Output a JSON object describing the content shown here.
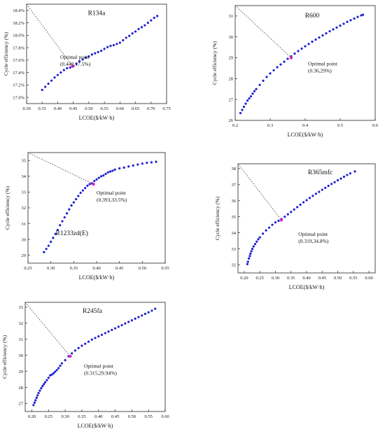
{
  "chart_data": [
    {
      "type": "scatter",
      "title": "R134a",
      "xlabel": "LCOE($/kW·h)",
      "ylabel": "Cycle efficiency (%)",
      "xlim": [
        0.3,
        0.75
      ],
      "ylim": [
        16.9,
        18.5
      ],
      "xticks": [
        0.3,
        0.35,
        0.4,
        0.45,
        0.5,
        0.55,
        0.6,
        0.65,
        0.7,
        0.75
      ],
      "xtick_labels": [
        "0.30",
        "0.35",
        "0.40",
        "0.45",
        "0.50",
        "0.55",
        "0.60",
        "0.65",
        "0.70",
        "0.75"
      ],
      "yticks": [
        17.0,
        17.2,
        17.4,
        17.6,
        17.8,
        18.0,
        18.2,
        18.4
      ],
      "ytick_labels": [
        "17.0%",
        "17.2%",
        "17.4%",
        "17.6%",
        "17.8%",
        "18.0%",
        "18.2%",
        "18.4%"
      ],
      "x": [
        0.35,
        0.36,
        0.37,
        0.38,
        0.39,
        0.4,
        0.41,
        0.42,
        0.43,
        0.44,
        0.45,
        0.46,
        0.47,
        0.48,
        0.49,
        0.5,
        0.51,
        0.52,
        0.53,
        0.54,
        0.55,
        0.56,
        0.57,
        0.58,
        0.59,
        0.6,
        0.61,
        0.62,
        0.63,
        0.64,
        0.65,
        0.66,
        0.67,
        0.68,
        0.69,
        0.7,
        0.71,
        0.72
      ],
      "y": [
        17.12,
        17.17,
        17.22,
        17.27,
        17.32,
        17.36,
        17.4,
        17.44,
        17.47,
        17.48,
        17.5,
        17.54,
        17.58,
        17.61,
        17.64,
        17.66,
        17.69,
        17.71,
        17.73,
        17.75,
        17.78,
        17.81,
        17.83,
        17.84,
        17.86,
        17.88,
        17.92,
        17.96,
        17.99,
        18.03,
        18.06,
        18.1,
        18.13,
        18.16,
        18.2,
        18.24,
        18.28,
        18.31
      ],
      "optimal": {
        "x": 0.448,
        "y": 17.5,
        "label": "Optimal point",
        "value_label": "(0.448,17.5%)"
      },
      "grid": false
    },
    {
      "type": "scatter",
      "title": "R600",
      "xlabel": "LCOE($/kW·h)",
      "ylabel": "Cycle efficiency (%)",
      "xlim": [
        0.2,
        0.6
      ],
      "ylim": [
        26,
        31.5
      ],
      "xticks": [
        0.2,
        0.3,
        0.4,
        0.5,
        0.6
      ],
      "xtick_labels": [
        "0.2",
        "0.3",
        "0.4",
        "0.5",
        "0.6"
      ],
      "yticks": [
        26,
        27,
        28,
        29,
        30,
        31
      ],
      "ytick_labels": [
        "26",
        "27",
        "28",
        "29",
        "30",
        "31"
      ],
      "x": [
        0.215,
        0.22,
        0.225,
        0.23,
        0.235,
        0.24,
        0.245,
        0.25,
        0.255,
        0.26,
        0.27,
        0.28,
        0.29,
        0.3,
        0.31,
        0.32,
        0.33,
        0.34,
        0.35,
        0.36,
        0.37,
        0.38,
        0.39,
        0.4,
        0.41,
        0.42,
        0.43,
        0.44,
        0.45,
        0.46,
        0.47,
        0.48,
        0.49,
        0.5,
        0.51,
        0.52,
        0.53,
        0.54,
        0.55,
        0.56,
        0.565
      ],
      "y": [
        26.35,
        26.5,
        26.65,
        26.8,
        26.95,
        27.05,
        27.15,
        27.28,
        27.4,
        27.5,
        27.7,
        27.9,
        28.08,
        28.25,
        28.4,
        28.55,
        28.68,
        28.81,
        28.95,
        29.07,
        29.2,
        29.32,
        29.44,
        29.55,
        29.66,
        29.77,
        29.87,
        29.97,
        30.07,
        30.17,
        30.27,
        30.36,
        30.45,
        30.54,
        30.63,
        30.72,
        30.8,
        30.88,
        30.96,
        31.03,
        31.06
      ],
      "optimal": {
        "x": 0.36,
        "y": 29.0,
        "label": "Optimal point",
        "value_label": "(0.36,29%)"
      },
      "grid": false
    },
    {
      "type": "scatter",
      "title": "R1233zd(E)",
      "xlabel": "LCOE($/kW·h)",
      "ylabel": "Cycle efficiency (%)",
      "xlim": [
        0.25,
        0.55
      ],
      "ylim": [
        28.5,
        35.5
      ],
      "xticks": [
        0.25,
        0.3,
        0.35,
        0.4,
        0.45,
        0.5,
        0.55
      ],
      "xtick_labels": [
        "0.25",
        "0.30",
        "0.35",
        "0.40",
        "0.45",
        "0.50",
        "0.55"
      ],
      "yticks": [
        29,
        30,
        31,
        32,
        33,
        34,
        35
      ],
      "ytick_labels": [
        "29",
        "30",
        "31",
        "32",
        "33",
        "34",
        "35"
      ],
      "x": [
        0.285,
        0.29,
        0.295,
        0.3,
        0.305,
        0.31,
        0.315,
        0.32,
        0.325,
        0.33,
        0.335,
        0.34,
        0.345,
        0.35,
        0.355,
        0.36,
        0.365,
        0.37,
        0.375,
        0.38,
        0.385,
        0.39,
        0.395,
        0.4,
        0.405,
        0.41,
        0.415,
        0.42,
        0.425,
        0.43,
        0.435,
        0.44,
        0.45,
        0.46,
        0.47,
        0.48,
        0.49,
        0.5,
        0.51,
        0.52,
        0.53
      ],
      "y": [
        29.2,
        29.4,
        29.6,
        29.85,
        30.1,
        30.35,
        30.6,
        30.9,
        31.15,
        31.4,
        31.65,
        31.9,
        32.15,
        32.35,
        32.55,
        32.75,
        32.95,
        33.1,
        33.25,
        33.4,
        33.5,
        33.55,
        33.7,
        33.8,
        33.9,
        34.0,
        34.05,
        34.15,
        34.25,
        34.3,
        34.35,
        34.42,
        34.5,
        34.55,
        34.62,
        34.68,
        34.74,
        34.8,
        34.85,
        34.88,
        34.92
      ],
      "optimal": {
        "x": 0.393,
        "y": 33.5,
        "label": "Optimal point",
        "value_label": "(0.393,33.5%)"
      },
      "grid": false
    },
    {
      "type": "scatter",
      "title": "R365mfc",
      "xlabel": "LCOE($/kW·h)",
      "ylabel": "Cycle efficiency (%)",
      "xlim": [
        0.18,
        0.62
      ],
      "ylim": [
        31.5,
        38.3
      ],
      "xticks": [
        0.2,
        0.25,
        0.3,
        0.35,
        0.4,
        0.45,
        0.5,
        0.55,
        0.6
      ],
      "xtick_labels": [
        "0.20",
        "0.25",
        "0.30",
        "0.35",
        "0.40",
        "0.45",
        "0.50",
        "0.55",
        "0.60"
      ],
      "yticks": [
        32,
        33,
        34,
        35,
        36,
        37,
        38
      ],
      "ytick_labels": [
        "32",
        "33",
        "34",
        "35",
        "36",
        "37",
        "38"
      ],
      "x": [
        0.21,
        0.212,
        0.215,
        0.218,
        0.22,
        0.223,
        0.226,
        0.23,
        0.235,
        0.24,
        0.245,
        0.25,
        0.26,
        0.27,
        0.28,
        0.29,
        0.3,
        0.31,
        0.32,
        0.33,
        0.34,
        0.35,
        0.36,
        0.37,
        0.38,
        0.39,
        0.4,
        0.41,
        0.42,
        0.43,
        0.44,
        0.45,
        0.46,
        0.47,
        0.48,
        0.49,
        0.5,
        0.51,
        0.52,
        0.53,
        0.54,
        0.555
      ],
      "y": [
        32.05,
        32.2,
        32.4,
        32.55,
        32.7,
        32.85,
        33.0,
        33.15,
        33.3,
        33.45,
        33.6,
        33.72,
        33.95,
        34.15,
        34.32,
        34.5,
        34.65,
        34.75,
        34.85,
        35.0,
        35.15,
        35.3,
        35.45,
        35.6,
        35.75,
        35.9,
        36.03,
        36.17,
        36.3,
        36.43,
        36.55,
        36.68,
        36.8,
        36.92,
        37.04,
        37.15,
        37.27,
        37.38,
        37.49,
        37.6,
        37.7,
        37.82
      ],
      "optimal": {
        "x": 0.319,
        "y": 34.8,
        "label": "Optimal point",
        "value_label": "(0.319,34.8%)"
      },
      "grid": false
    },
    {
      "type": "scatter",
      "title": "R245fa",
      "xlabel": "LCOE($/kW·h)",
      "ylabel": "Cycle efficiency (%)",
      "xlim": [
        0.18,
        0.6
      ],
      "ylim": [
        26.5,
        33.3
      ],
      "xticks": [
        0.2,
        0.25,
        0.3,
        0.35,
        0.4,
        0.45,
        0.5,
        0.55,
        0.6
      ],
      "xtick_labels": [
        "0.20",
        "0.25",
        "0.30",
        "0.35",
        "0.40",
        "0.45",
        "0.50",
        "0.55",
        "0.60"
      ],
      "yticks": [
        27,
        28,
        29,
        30,
        31,
        32,
        33
      ],
      "ytick_labels": [
        "27",
        "28",
        "29",
        "30",
        "31",
        "32",
        "33"
      ],
      "x": [
        0.205,
        0.208,
        0.211,
        0.214,
        0.217,
        0.22,
        0.224,
        0.228,
        0.232,
        0.236,
        0.24,
        0.245,
        0.25,
        0.255,
        0.26,
        0.265,
        0.27,
        0.275,
        0.28,
        0.285,
        0.29,
        0.3,
        0.31,
        0.32,
        0.33,
        0.34,
        0.35,
        0.36,
        0.37,
        0.38,
        0.39,
        0.4,
        0.41,
        0.42,
        0.43,
        0.44,
        0.45,
        0.46,
        0.47,
        0.48,
        0.49,
        0.5,
        0.51,
        0.52,
        0.53,
        0.54,
        0.55,
        0.56,
        0.57
      ],
      "y": [
        26.9,
        27.05,
        27.2,
        27.35,
        27.5,
        27.65,
        27.8,
        27.95,
        28.08,
        28.2,
        28.32,
        28.45,
        28.6,
        28.75,
        28.8,
        28.88,
        28.98,
        29.08,
        29.2,
        29.35,
        29.5,
        29.7,
        29.94,
        30.12,
        30.3,
        30.45,
        30.6,
        30.72,
        30.85,
        30.98,
        31.08,
        31.18,
        31.28,
        31.38,
        31.48,
        31.58,
        31.68,
        31.78,
        31.88,
        31.98,
        32.08,
        32.18,
        32.28,
        32.38,
        32.48,
        32.58,
        32.68,
        32.78,
        32.9
      ],
      "optimal": {
        "x": 0.315,
        "y": 29.94,
        "label": "Optimal point",
        "value_label": "(0.315,29.94%)"
      },
      "grid": false
    }
  ]
}
